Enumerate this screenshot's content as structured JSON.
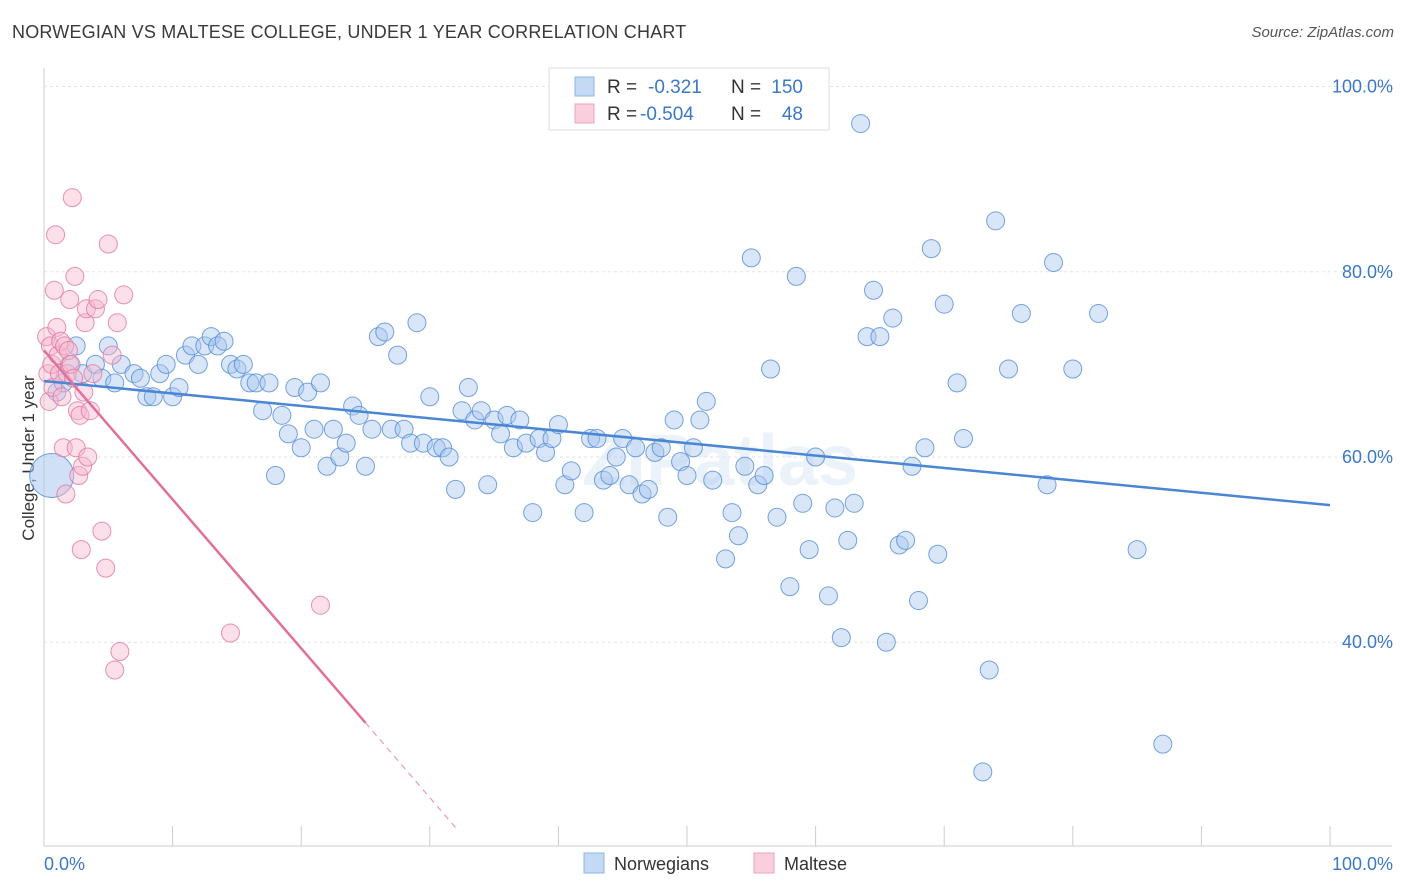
{
  "header": {
    "title": "NORWEGIAN VS MALTESE COLLEGE, UNDER 1 YEAR CORRELATION CHART",
    "source": "Source: ZipAtlas.com"
  },
  "colors": {
    "blue": "#4b86d4",
    "blue_fill": "#a9c8f0",
    "pink": "#e0709a",
    "pink_fill": "#f6b9cf",
    "grid": "#e3e3e3",
    "tick_text": "#3b78c8"
  },
  "legend": {
    "rows": [
      {
        "r_label": "R =",
        "r_value": "-0.321",
        "n_label": "N =",
        "n_value": "150"
      },
      {
        "r_label": "R =",
        "r_value": "-0.504",
        "n_label": "N =",
        "n_value": "48"
      }
    ]
  },
  "watermark": "ZIPatlas",
  "chart_data": {
    "type": "scatter",
    "title": "NORWEGIAN VS MALTESE COLLEGE, UNDER 1 YEAR CORRELATION CHART",
    "xlabel": "",
    "ylabel": "College, Under 1 year",
    "xlim": [
      0,
      100
    ],
    "ylim": [
      18,
      102
    ],
    "x_tick_labels": [
      "0.0%",
      "100.0%"
    ],
    "y_ticks": [
      40,
      60,
      80,
      100
    ],
    "y_tick_labels": [
      "40.0%",
      "60.0%",
      "80.0%",
      "100.0%"
    ],
    "grid": true,
    "legend_position": "bottom-center",
    "series": [
      {
        "name": "Norwegians",
        "color": "#4b86d4",
        "R": -0.321,
        "N": 150,
        "trendline": {
          "x": [
            0,
            100
          ],
          "y": [
            68.2,
            54.8
          ]
        },
        "points": [
          [
            0.6,
            58
          ],
          [
            1,
            67
          ],
          [
            1.5,
            68
          ],
          [
            2,
            70
          ],
          [
            2.5,
            72
          ],
          [
            3,
            69
          ],
          [
            4,
            70
          ],
          [
            4.5,
            68.5
          ],
          [
            5,
            72
          ],
          [
            5.5,
            68
          ],
          [
            6,
            70
          ],
          [
            7,
            69
          ],
          [
            7.5,
            68.5
          ],
          [
            8,
            66.5
          ],
          [
            8.5,
            66.5
          ],
          [
            9,
            69
          ],
          [
            9.5,
            70
          ],
          [
            10,
            66.5
          ],
          [
            10.5,
            67.5
          ],
          [
            11,
            71
          ],
          [
            11.5,
            72
          ],
          [
            12,
            70
          ],
          [
            12.5,
            72
          ],
          [
            13,
            73
          ],
          [
            13.5,
            72
          ],
          [
            14,
            72.5
          ],
          [
            14.5,
            70
          ],
          [
            15,
            69.5
          ],
          [
            15.5,
            70
          ],
          [
            16,
            68
          ],
          [
            16.5,
            68
          ],
          [
            17,
            65
          ],
          [
            17.5,
            68
          ],
          [
            18,
            58
          ],
          [
            18.5,
            64.5
          ],
          [
            19,
            62.5
          ],
          [
            19.5,
            67.5
          ],
          [
            20,
            61
          ],
          [
            20.5,
            67
          ],
          [
            21,
            63
          ],
          [
            21.5,
            68
          ],
          [
            22,
            59
          ],
          [
            22.5,
            63
          ],
          [
            23,
            60
          ],
          [
            23.5,
            61.5
          ],
          [
            24,
            65.5
          ],
          [
            24.5,
            64.5
          ],
          [
            25,
            59
          ],
          [
            25.5,
            63
          ],
          [
            26,
            73
          ],
          [
            26.5,
            73.5
          ],
          [
            27,
            63
          ],
          [
            27.5,
            71
          ],
          [
            28,
            63
          ],
          [
            28.5,
            61.5
          ],
          [
            29,
            74.5
          ],
          [
            29.5,
            61.5
          ],
          [
            30,
            66.5
          ],
          [
            30.5,
            61
          ],
          [
            31,
            61
          ],
          [
            31.5,
            60
          ],
          [
            32,
            56.5
          ],
          [
            32.5,
            65
          ],
          [
            33,
            67.5
          ],
          [
            33.5,
            64
          ],
          [
            34,
            65
          ],
          [
            34.5,
            57
          ],
          [
            35,
            64
          ],
          [
            35.5,
            62.5
          ],
          [
            36,
            64.5
          ],
          [
            36.5,
            61
          ],
          [
            37,
            64
          ],
          [
            37.5,
            61.5
          ],
          [
            38,
            54
          ],
          [
            38.5,
            62
          ],
          [
            39,
            60.5
          ],
          [
            39.5,
            62
          ],
          [
            40,
            63.5
          ],
          [
            40.5,
            57
          ],
          [
            41,
            58.5
          ],
          [
            42,
            54
          ],
          [
            42.5,
            62
          ],
          [
            43,
            62
          ],
          [
            43.5,
            57.5
          ],
          [
            44,
            58
          ],
          [
            44.5,
            60
          ],
          [
            45,
            62
          ],
          [
            45.5,
            57
          ],
          [
            46,
            61
          ],
          [
            46.5,
            56
          ],
          [
            47,
            56.5
          ],
          [
            47.5,
            60.5
          ],
          [
            48,
            61
          ],
          [
            48.5,
            53.5
          ],
          [
            49,
            64
          ],
          [
            49.5,
            59.5
          ],
          [
            50,
            58
          ],
          [
            50.5,
            61
          ],
          [
            51,
            64
          ],
          [
            51.5,
            66
          ],
          [
            52,
            57.5
          ],
          [
            53,
            49
          ],
          [
            53.5,
            54
          ],
          [
            54,
            51.5
          ],
          [
            54.5,
            59
          ],
          [
            55,
            81.5
          ],
          [
            55.5,
            57
          ],
          [
            56,
            58
          ],
          [
            56.5,
            69.5
          ],
          [
            57,
            53.5
          ],
          [
            58,
            46
          ],
          [
            58.5,
            79.5
          ],
          [
            59,
            55
          ],
          [
            59.5,
            50
          ],
          [
            60,
            60
          ],
          [
            61,
            45
          ],
          [
            61.5,
            54.5
          ],
          [
            62,
            40.5
          ],
          [
            62.5,
            51
          ],
          [
            63,
            55
          ],
          [
            63.5,
            96
          ],
          [
            64,
            73
          ],
          [
            64.5,
            78
          ],
          [
            65,
            73
          ],
          [
            65.5,
            40
          ],
          [
            66,
            75
          ],
          [
            66.5,
            50.5
          ],
          [
            67,
            51
          ],
          [
            67.5,
            59
          ],
          [
            68,
            44.5
          ],
          [
            68.5,
            61
          ],
          [
            69,
            82.5
          ],
          [
            69.5,
            49.5
          ],
          [
            70,
            76.5
          ],
          [
            71,
            68
          ],
          [
            71.5,
            62
          ],
          [
            73,
            26
          ],
          [
            73.5,
            37
          ],
          [
            74,
            85.5
          ],
          [
            75,
            69.5
          ],
          [
            76,
            75.5
          ],
          [
            78,
            57
          ],
          [
            78.5,
            81
          ],
          [
            80,
            69.5
          ],
          [
            82,
            75.5
          ],
          [
            85,
            50
          ],
          [
            87,
            29
          ]
        ]
      },
      {
        "name": "Maltese",
        "color": "#e0709a",
        "R": -0.504,
        "N": 48,
        "trendline": {
          "x": [
            0,
            25
          ],
          "y": [
            71.5,
            31.3
          ],
          "dashed_to": {
            "x": 32,
            "y": 20
          }
        },
        "points": [
          [
            0.2,
            73
          ],
          [
            0.3,
            69
          ],
          [
            0.4,
            66
          ],
          [
            0.5,
            72
          ],
          [
            0.6,
            70
          ],
          [
            0.7,
            67.5
          ],
          [
            0.8,
            78
          ],
          [
            0.9,
            84
          ],
          [
            1,
            74
          ],
          [
            1.1,
            71
          ],
          [
            1.2,
            69
          ],
          [
            1.3,
            72.5
          ],
          [
            1.4,
            66.5
          ],
          [
            1.5,
            61
          ],
          [
            1.6,
            72
          ],
          [
            1.7,
            56
          ],
          [
            1.8,
            69
          ],
          [
            1.9,
            71.5
          ],
          [
            2,
            77
          ],
          [
            2.1,
            70
          ],
          [
            2.2,
            88
          ],
          [
            2.3,
            68.5
          ],
          [
            2.4,
            79.5
          ],
          [
            2.5,
            61
          ],
          [
            2.6,
            65
          ],
          [
            2.7,
            58
          ],
          [
            2.8,
            64.5
          ],
          [
            2.9,
            50
          ],
          [
            3,
            59
          ],
          [
            3.1,
            67
          ],
          [
            3.2,
            74.5
          ],
          [
            3.3,
            76
          ],
          [
            3.4,
            60
          ],
          [
            3.6,
            65
          ],
          [
            3.8,
            69
          ],
          [
            4,
            76
          ],
          [
            4.2,
            77
          ],
          [
            4.5,
            52
          ],
          [
            4.8,
            48
          ],
          [
            5,
            83
          ],
          [
            5.3,
            71
          ],
          [
            5.5,
            37
          ],
          [
            5.7,
            74.5
          ],
          [
            5.9,
            39
          ],
          [
            6.2,
            77.5
          ],
          [
            14.5,
            41
          ],
          [
            21.5,
            44
          ]
        ]
      }
    ]
  },
  "bottom_legend": {
    "items": [
      {
        "label": "Norwegians"
      },
      {
        "label": "Maltese"
      }
    ]
  }
}
